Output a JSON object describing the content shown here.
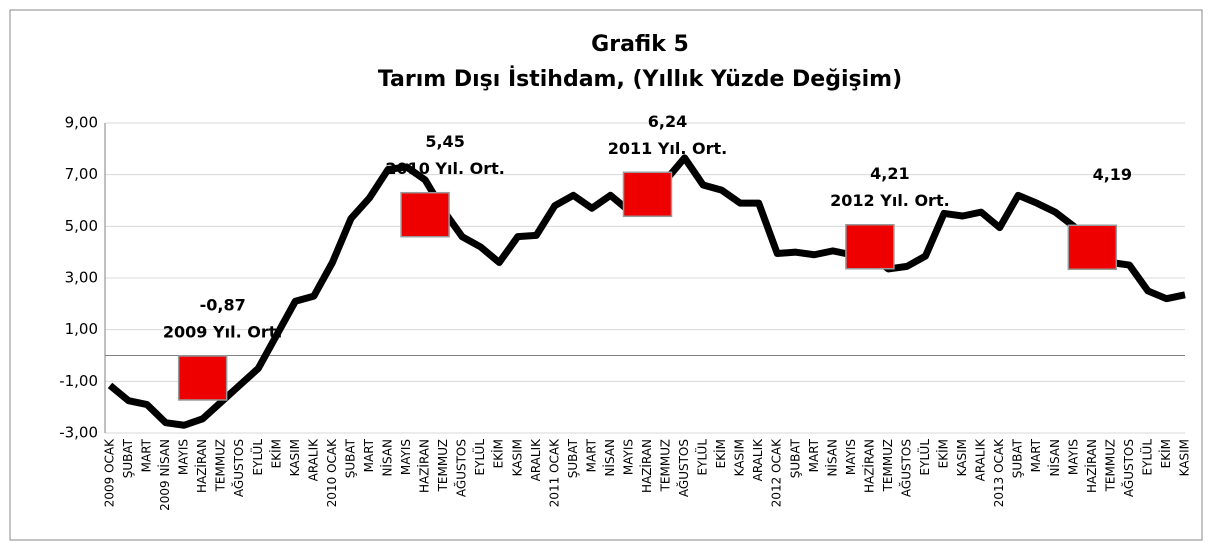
{
  "chart_data": {
    "type": "line",
    "title": "Grafik   5",
    "subtitle": "Tarım Dışı İstihdam, (Yıllık Yüzde Değişim)",
    "categories": [
      "2009 OCAK",
      "ŞUBAT",
      "MART",
      "2009 NİSAN",
      "MAYIS",
      "HAZİRAN",
      "TEMMUZ",
      "AĞUSTOS",
      "EYLÜL",
      "EKİM",
      "KASIM",
      "ARALIK",
      "2010 OCAK",
      "ŞUBAT",
      "MART",
      "NİSAN",
      "MAYIS",
      "HAZİRAN",
      "TEMMUZ",
      "AĞUSTOS",
      "EYLÜL",
      "EKİM",
      "KASIM",
      "ARALIK",
      "2011 OCAK",
      "ŞUBAT",
      "MART",
      "NİSAN",
      "MAYIS",
      "HAZİRAN",
      "TEMMUZ",
      "AĞUSTOS",
      "EYLÜL",
      "EKİM",
      "KASIM",
      "ARALIK",
      "2012 OCAK",
      "ŞUBAT",
      "MART",
      "NİSAN",
      "MAYIS",
      "HAZİRAN",
      "TEMMUZ",
      "AĞUSTOS",
      "EYLÜL",
      "EKİM",
      "KASIM",
      "ARALIK",
      "2013 OCAK",
      "ŞUBAT",
      "MART",
      "NİSAN",
      "MAYIS",
      "HAZİRAN",
      "TEMMUZ",
      "AĞUSTOS",
      "EYLÜL",
      "EKİM",
      "KASIM"
    ],
    "values": [
      -1.16,
      -1.75,
      -1.9,
      -2.6,
      -2.7,
      -2.45,
      -1.8,
      -1.15,
      -0.5,
      0.8,
      2.1,
      2.3,
      3.6,
      5.3,
      6.1,
      7.2,
      7.3,
      6.8,
      5.6,
      4.6,
      4.2,
      3.6,
      4.6,
      4.65,
      5.8,
      6.2,
      5.7,
      6.2,
      5.6,
      6.0,
      6.8,
      7.65,
      6.6,
      6.4,
      5.9,
      5.9,
      3.95,
      4.0,
      3.9,
      4.05,
      3.9,
      3.9,
      3.35,
      3.45,
      3.85,
      5.5,
      5.4,
      5.55,
      4.95,
      6.2,
      5.9,
      5.55,
      5.0,
      4.4,
      3.6,
      3.5,
      2.5,
      2.2,
      2.35
    ],
    "color": "#000000",
    "averages": [
      {
        "category_index": 5,
        "value": -0.87,
        "value_label": "-0,87",
        "text": "2009 Yıl. Ort."
      },
      {
        "category_index": 17,
        "value": 5.45,
        "value_label": "5,45",
        "text": "2010 Yıl. Ort."
      },
      {
        "category_index": 29,
        "value": 6.24,
        "value_label": "6,24",
        "text": "2011 Yıl. Ort."
      },
      {
        "category_index": 41,
        "value": 4.21,
        "value_label": "4,21",
        "text": "2012 Yıl. Ort."
      },
      {
        "category_index": 53,
        "value": 4.19,
        "value_label": "4,19",
        "text": ""
      }
    ],
    "average_color": "#ee0000",
    "ylim": [
      -3,
      9
    ],
    "yticks": [
      {
        "value": -3,
        "label": "-3,00"
      },
      {
        "value": -1,
        "label": "-1,00"
      },
      {
        "value": 1,
        "label": "1,00"
      },
      {
        "value": 3,
        "label": "3,00"
      },
      {
        "value": 5,
        "label": "5,00"
      },
      {
        "value": 7,
        "label": "7,00"
      },
      {
        "value": 9,
        "label": "9,00"
      }
    ],
    "grid": true
  }
}
